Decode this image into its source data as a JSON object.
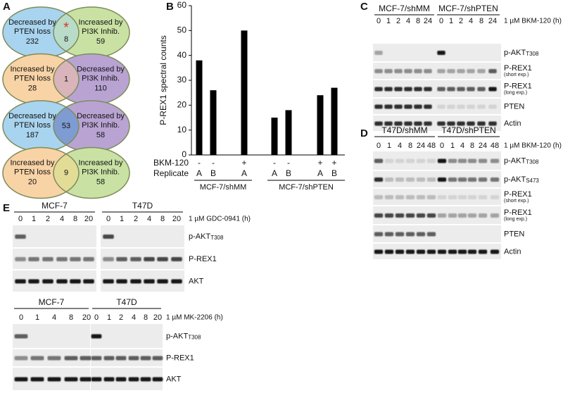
{
  "panel_letters": [
    "A",
    "B",
    "C",
    "D",
    "E"
  ],
  "venn": [
    {
      "left": [
        "Decreased by",
        "PTEN loss"
      ],
      "left_count": 232,
      "right": [
        "Increased by",
        "PI3K Inhib."
      ],
      "right_count": 59,
      "overlap": 8,
      "mark": "*"
    },
    {
      "left": [
        "Increased by",
        "PTEN loss"
      ],
      "left_count": 28,
      "right": [
        "Decreased by",
        "PI3K Inhib."
      ],
      "right_count": 110,
      "overlap": 1
    },
    {
      "left": [
        "Decreased by",
        "PTEN loss"
      ],
      "left_count": 187,
      "right": [
        "Decreased by",
        "PI3K Inhib."
      ],
      "right_count": 58,
      "overlap": 53
    },
    {
      "left": [
        "Increased by",
        "PTEN loss"
      ],
      "left_count": 20,
      "right": [
        "Increased by",
        "PI3K Inhib."
      ],
      "right_count": 58,
      "overlap": 9
    }
  ],
  "chart_data": {
    "type": "bar",
    "y_label": "P-REX1 spectral counts",
    "values": [
      38,
      26,
      50,
      15,
      18,
      24,
      27
    ],
    "color": "#000000",
    "ylim": [
      0,
      60
    ],
    "yticks": [
      0,
      10,
      20,
      30,
      40,
      50,
      60
    ],
    "row_labels": [
      "BKM-120",
      "Replicate"
    ],
    "bkm": [
      "-",
      "-",
      "+",
      "-",
      "-",
      "+",
      "+"
    ],
    "replicate": [
      "A",
      "B",
      "A",
      "A",
      "B",
      "A",
      "B"
    ],
    "groups": [
      "MCF-7/shMM",
      "MCF-7/shPTEN"
    ]
  },
  "panel_c": {
    "groups": [
      "MCF-7/shMM",
      "MCF-7/shPTEN"
    ],
    "lanes": [
      [
        0,
        1,
        2,
        4,
        8,
        24
      ],
      [
        0,
        1,
        2,
        4,
        8,
        24
      ]
    ],
    "treatment": "1 µM BKM-120 (h)",
    "rows": [
      {
        "name": "p-AKT",
        "sub": "T308"
      },
      {
        "name": "P-REX1",
        "note": "(short exp.)"
      },
      {
        "name": "P-REX1",
        "note": "(long exp.)"
      },
      {
        "name": "PTEN"
      },
      {
        "name": "Actin"
      }
    ]
  },
  "panel_d": {
    "groups": [
      "T47D/shMM",
      "T47D/shPTEN"
    ],
    "lanes": [
      [
        0,
        1,
        4,
        8,
        24,
        48
      ],
      [
        0,
        1,
        4,
        8,
        24,
        48
      ]
    ],
    "treatment": "1 µM BKM-120 (h)",
    "rows": [
      {
        "name": "p-AKT",
        "sub": "T308"
      },
      {
        "name": "p-AKT",
        "sub": "S473"
      },
      {
        "name": "P-REX1",
        "note": "(short exp.)"
      },
      {
        "name": "P-REX1",
        "note": "(long exp.)"
      },
      {
        "name": "PTEN"
      },
      {
        "name": "Actin"
      }
    ]
  },
  "panel_e": [
    {
      "groups": [
        "MCF-7",
        "T47D"
      ],
      "lanes": [
        [
          0,
          1,
          2,
          4,
          8,
          20
        ],
        [
          0,
          1,
          2,
          4,
          8,
          20
        ]
      ],
      "treatment": "1 µM GDC-0941 (h)",
      "rows": [
        {
          "name": "p-AKT",
          "sub": "T308"
        },
        {
          "name": "P-REX1"
        },
        {
          "name": "AKT"
        }
      ]
    },
    {
      "groups": [
        "MCF-7",
        "T47D"
      ],
      "lanes": [
        [
          0,
          1,
          4,
          8,
          20
        ],
        [
          0,
          1,
          2,
          4,
          8,
          20
        ]
      ],
      "treatment": "1 µM MK-2206 (h)",
      "rows": [
        {
          "name": "p-AKT",
          "sub": "T308"
        },
        {
          "name": "P-REX1"
        },
        {
          "name": "AKT"
        }
      ]
    }
  ]
}
